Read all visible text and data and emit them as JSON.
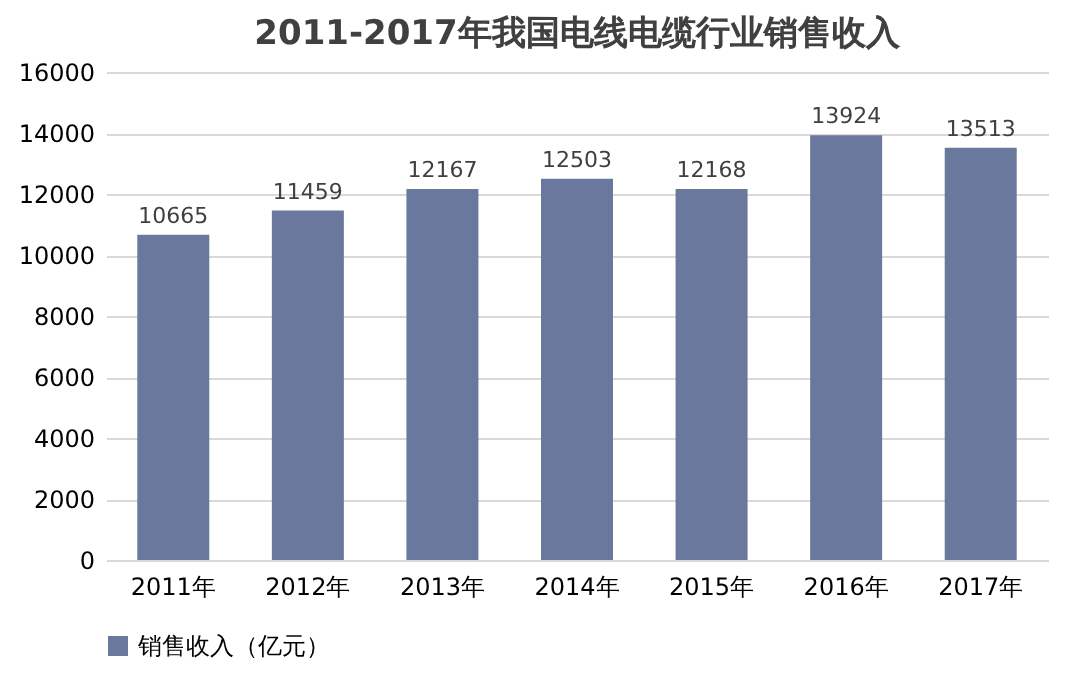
{
  "chart_data": {
    "type": "bar",
    "title": "2011-2017年我国电线电缆行业销售收入",
    "categories": [
      "2011年",
      "2012年",
      "2013年",
      "2014年",
      "2015年",
      "2016年",
      "2017年"
    ],
    "series": [
      {
        "name": "销售收入（亿元）",
        "color": "#6a789e",
        "values": [
          10665,
          11459,
          12167,
          12503,
          12168,
          13924,
          13513
        ]
      }
    ],
    "ylim": [
      0,
      16000
    ],
    "yticks": [
      0,
      2000,
      4000,
      6000,
      8000,
      10000,
      12000,
      14000,
      16000
    ],
    "grid": "y",
    "legend": "bottom",
    "data_labels": true
  }
}
